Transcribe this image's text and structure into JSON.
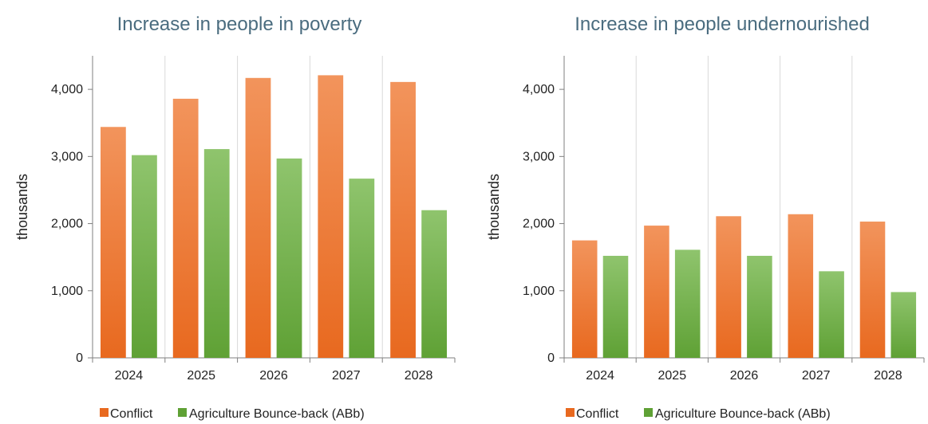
{
  "chart_data": [
    {
      "type": "bar",
      "title": "Increase in people in poverty",
      "ylabel": "thousands",
      "xlabel": "",
      "categories": [
        "2024",
        "2025",
        "2026",
        "2027",
        "2028"
      ],
      "ylim": [
        0,
        4500
      ],
      "yticks": [
        0,
        1000,
        2000,
        3000,
        4000
      ],
      "ytick_labels": [
        "0",
        "1,000",
        "2,000",
        "3,000",
        "4,000"
      ],
      "series": [
        {
          "name": "Conflict",
          "values": [
            3440,
            3860,
            4170,
            4210,
            4110
          ]
        },
        {
          "name": "Agriculture Bounce-back (ABb)",
          "values": [
            3020,
            3110,
            2970,
            2670,
            2200
          ]
        }
      ],
      "legend_position": "bottom-left",
      "vertical_gridlines": true
    },
    {
      "type": "bar",
      "title": "Increase in people undernourished",
      "ylabel": "thousands",
      "xlabel": "",
      "categories": [
        "2024",
        "2025",
        "2026",
        "2027",
        "2028"
      ],
      "ylim": [
        0,
        4500
      ],
      "yticks": [
        0,
        1000,
        2000,
        3000,
        4000
      ],
      "ytick_labels": [
        "0",
        "1,000",
        "2,000",
        "3,000",
        "4,000"
      ],
      "series": [
        {
          "name": "Conflict",
          "values": [
            1750,
            1970,
            2110,
            2140,
            2030
          ]
        },
        {
          "name": "Agriculture Bounce-back (ABb)",
          "values": [
            1520,
            1610,
            1520,
            1290,
            980
          ]
        }
      ],
      "legend_position": "bottom-left",
      "vertical_gridlines": true
    }
  ],
  "colors": {
    "conflict_top": "#f2945c",
    "conflict_bottom": "#e8691f",
    "abb_top": "#8fc46d",
    "abb_bottom": "#5fa135",
    "title": "#4a6c7f"
  }
}
